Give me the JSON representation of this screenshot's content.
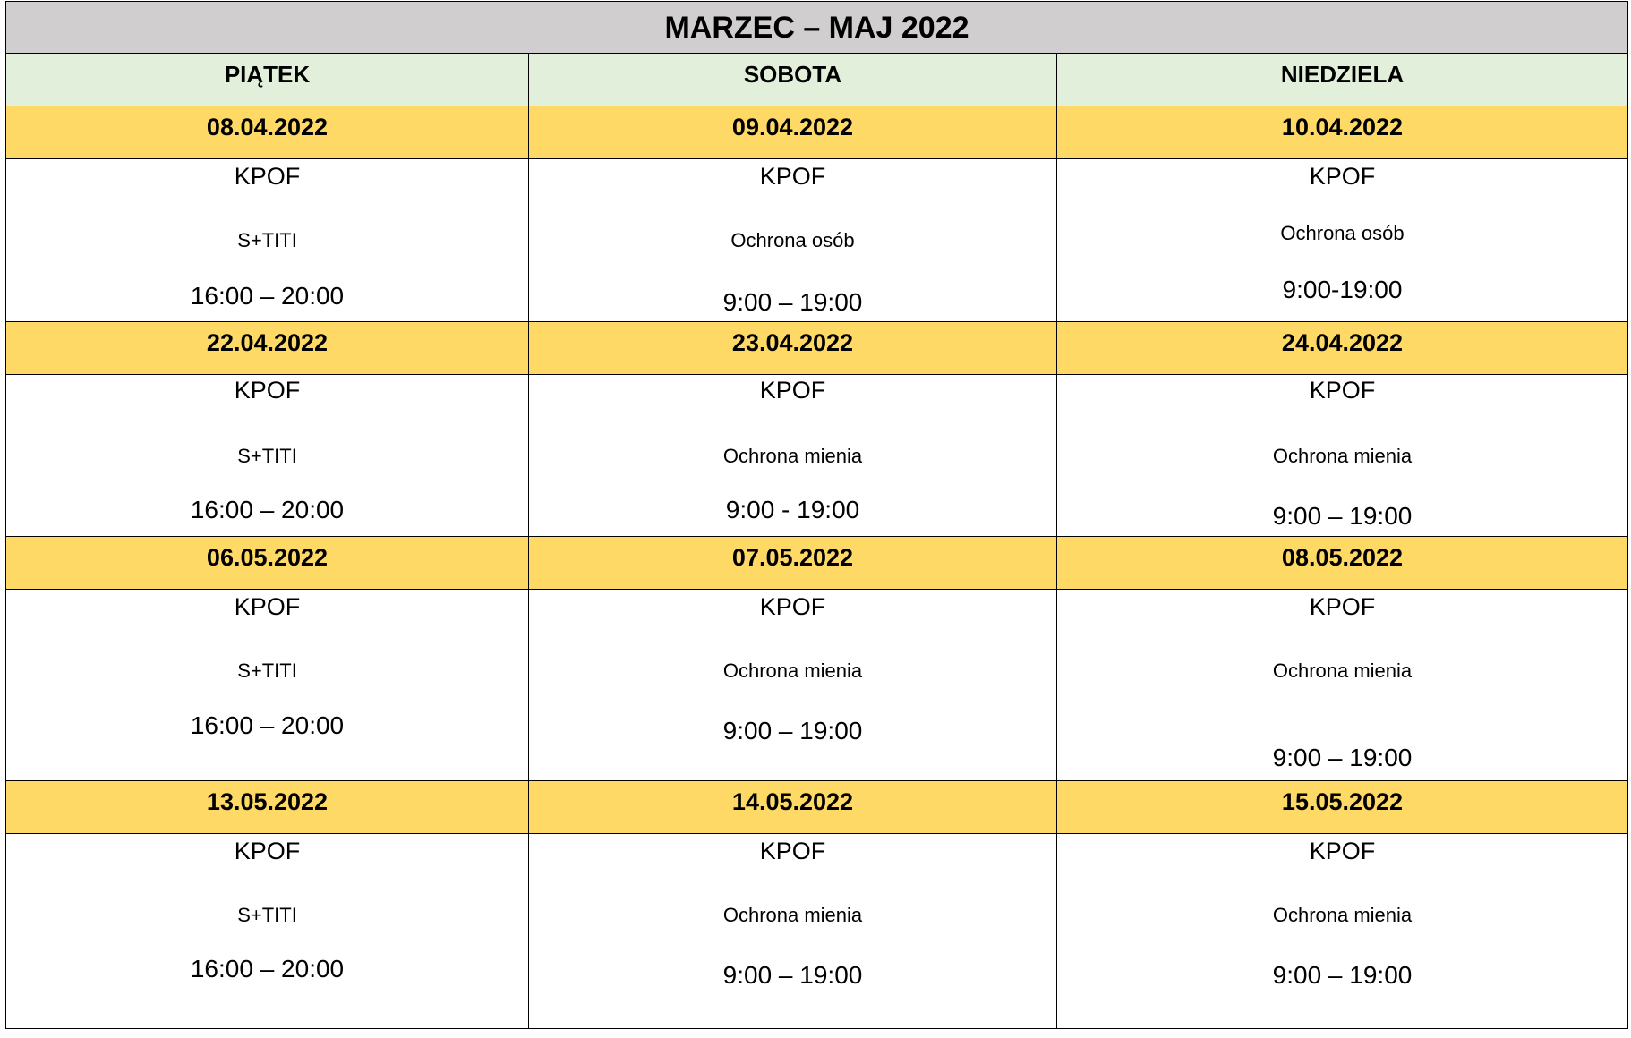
{
  "title": "MARZEC – MAJ 2022",
  "days": [
    "PIĄTEK",
    "SOBOTA",
    "NIEDZIELA"
  ],
  "weeks": [
    {
      "dates": [
        "08.04.2022",
        "09.04.2022",
        "10.04.2022"
      ],
      "cells": [
        {
          "course": "KPOF",
          "subject": "S+TITI",
          "time": "16:00 – 20:00"
        },
        {
          "course": "KPOF",
          "subject": "Ochrona osób",
          "time": "9:00 – 19:00"
        },
        {
          "course": "KPOF",
          "subject": "Ochrona osób",
          "time": "9:00-19:00"
        }
      ]
    },
    {
      "dates": [
        "22.04.2022",
        "23.04.2022",
        "24.04.2022"
      ],
      "cells": [
        {
          "course": "KPOF",
          "subject": "S+TITI",
          "time": "16:00 – 20:00"
        },
        {
          "course": "KPOF",
          "subject": "Ochrona mienia",
          "time": "9:00 - 19:00"
        },
        {
          "course": "KPOF",
          "subject": "Ochrona mienia",
          "time": "9:00 – 19:00"
        }
      ]
    },
    {
      "dates": [
        "06.05.2022",
        "07.05.2022",
        "08.05.2022"
      ],
      "cells": [
        {
          "course": "KPOF",
          "subject": "S+TITI",
          "time": "16:00 – 20:00"
        },
        {
          "course": "KPOF",
          "subject": "Ochrona mienia",
          "time": "9:00 – 19:00"
        },
        {
          "course": "KPOF",
          "subject": "Ochrona mienia",
          "time": "9:00 – 19:00"
        }
      ]
    },
    {
      "dates": [
        "13.05.2022",
        "14.05.2022",
        "15.05.2022"
      ],
      "cells": [
        {
          "course": "KPOF",
          "subject": "S+TITI",
          "time": "16:00 – 20:00"
        },
        {
          "course": "KPOF",
          "subject": "Ochrona mienia",
          "time": "9:00 – 19:00"
        },
        {
          "course": "KPOF",
          "subject": "Ochrona mienia",
          "time": "9:00 – 19:00"
        }
      ]
    }
  ],
  "colors": {
    "title_bg": "#d0cece",
    "day_bg": "#e2efda",
    "date_bg": "#ffd966"
  }
}
